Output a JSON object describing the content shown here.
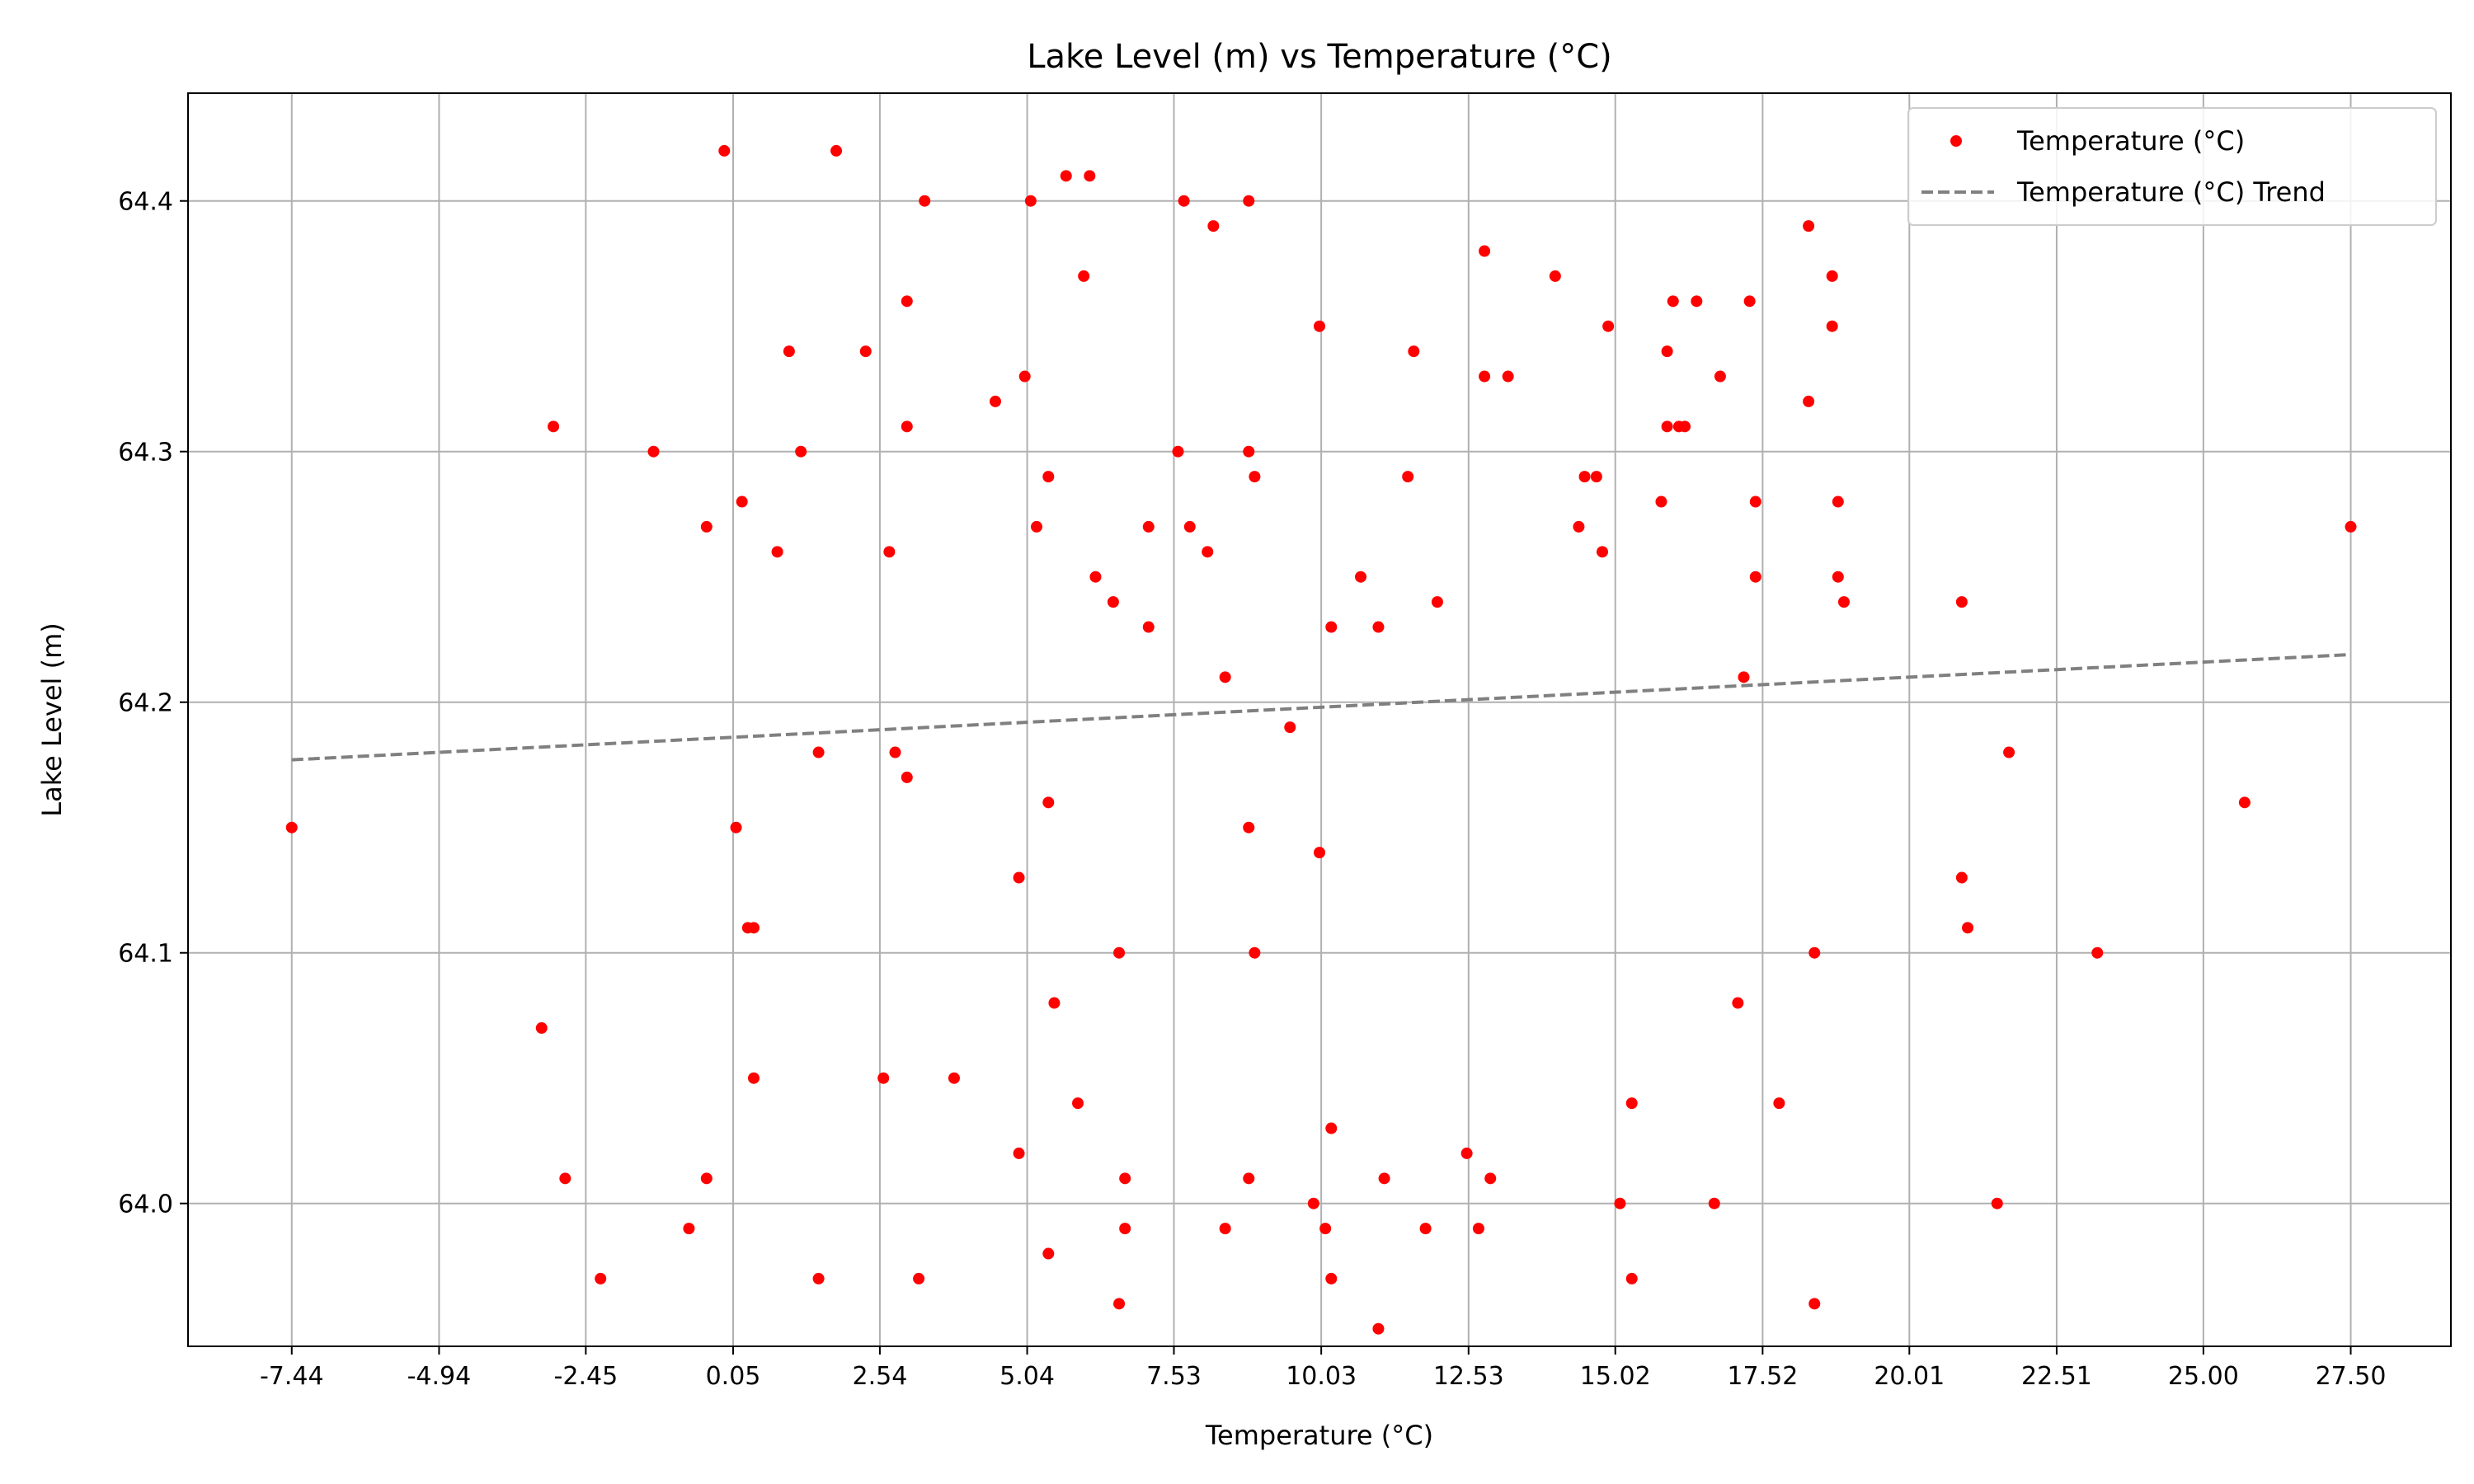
{
  "chart_data": {
    "type": "scatter",
    "title": "Lake Level (m) vs Temperature (°C)",
    "xlabel": "Temperature (°C)",
    "ylabel": "Lake Level (m)",
    "xlim": [
      -9.2,
      29.2
    ],
    "ylim": [
      63.943,
      64.443
    ],
    "xticks": [
      -7.44,
      -4.94,
      -2.45,
      0.05,
      2.54,
      5.04,
      7.53,
      10.03,
      12.53,
      15.02,
      17.52,
      20.01,
      22.51,
      25.0,
      27.5
    ],
    "xtick_labels": [
      "-7.44",
      "-4.94",
      "-2.45",
      "0.05",
      "2.54",
      "5.04",
      "7.53",
      "10.03",
      "12.53",
      "15.02",
      "17.52",
      "20.01",
      "22.51",
      "25.00",
      "27.50"
    ],
    "yticks": [
      64.0,
      64.1,
      64.2,
      64.3,
      64.4
    ],
    "ytick_labels": [
      "64.0",
      "64.1",
      "64.2",
      "64.3",
      "64.4"
    ],
    "grid": true,
    "legend_position": "top-right",
    "colors": {
      "points": "#ff0000",
      "trend": "#808080",
      "grid": "#b0b0b0"
    },
    "series": [
      {
        "name": "Temperature (°C)",
        "kind": "scatter",
        "points": [
          [
            -7.44,
            64.15
          ],
          [
            -3.0,
            64.31
          ],
          [
            -1.3,
            64.3
          ],
          [
            -0.1,
            64.42
          ],
          [
            1.8,
            64.42
          ],
          [
            -0.4,
            64.27
          ],
          [
            0.2,
            64.28
          ],
          [
            1.0,
            64.34
          ],
          [
            1.2,
            64.3
          ],
          [
            0.8,
            64.26
          ],
          [
            3.3,
            64.4
          ],
          [
            5.1,
            64.4
          ],
          [
            5.7,
            64.41
          ],
          [
            6.1,
            64.41
          ],
          [
            7.7,
            64.4
          ],
          [
            8.8,
            64.4
          ],
          [
            8.2,
            64.39
          ],
          [
            6.0,
            64.37
          ],
          [
            3.0,
            64.36
          ],
          [
            2.3,
            64.34
          ],
          [
            3.0,
            64.31
          ],
          [
            4.5,
            64.32
          ],
          [
            5.0,
            64.33
          ],
          [
            2.7,
            64.26
          ],
          [
            5.4,
            64.29
          ],
          [
            5.2,
            64.27
          ],
          [
            7.6,
            64.3
          ],
          [
            8.8,
            64.3
          ],
          [
            8.9,
            64.29
          ],
          [
            7.1,
            64.27
          ],
          [
            7.8,
            64.27
          ],
          [
            8.1,
            64.26
          ],
          [
            6.2,
            64.25
          ],
          [
            6.5,
            64.24
          ],
          [
            7.1,
            64.23
          ],
          [
            10.0,
            64.35
          ],
          [
            11.6,
            64.34
          ],
          [
            11.5,
            64.29
          ],
          [
            10.7,
            64.25
          ],
          [
            12.0,
            64.24
          ],
          [
            10.2,
            64.23
          ],
          [
            11.0,
            64.23
          ],
          [
            12.8,
            64.38
          ],
          [
            12.8,
            64.33
          ],
          [
            13.2,
            64.33
          ],
          [
            14.0,
            64.37
          ],
          [
            14.9,
            64.35
          ],
          [
            14.5,
            64.29
          ],
          [
            14.7,
            64.29
          ],
          [
            14.4,
            64.27
          ],
          [
            14.8,
            64.26
          ],
          [
            15.9,
            64.34
          ],
          [
            16.0,
            64.36
          ],
          [
            16.4,
            64.36
          ],
          [
            17.3,
            64.36
          ],
          [
            16.8,
            64.33
          ],
          [
            15.9,
            64.31
          ],
          [
            16.1,
            64.31
          ],
          [
            16.2,
            64.31
          ],
          [
            15.8,
            64.28
          ],
          [
            17.4,
            64.28
          ],
          [
            17.4,
            64.25
          ],
          [
            18.3,
            64.39
          ],
          [
            18.7,
            64.37
          ],
          [
            18.7,
            64.35
          ],
          [
            18.3,
            64.32
          ],
          [
            18.8,
            64.28
          ],
          [
            18.8,
            64.25
          ],
          [
            18.9,
            64.24
          ],
          [
            20.9,
            64.24
          ],
          [
            27.5,
            64.27
          ],
          [
            8.4,
            64.21
          ],
          [
            17.2,
            64.21
          ],
          [
            9.5,
            64.19
          ],
          [
            1.5,
            64.18
          ],
          [
            2.8,
            64.18
          ],
          [
            3.0,
            64.17
          ],
          [
            5.4,
            64.16
          ],
          [
            0.1,
            64.15
          ],
          [
            8.8,
            64.15
          ],
          [
            10.0,
            64.14
          ],
          [
            21.7,
            64.18
          ],
          [
            25.7,
            64.16
          ],
          [
            4.9,
            64.13
          ],
          [
            20.9,
            64.13
          ],
          [
            0.3,
            64.11
          ],
          [
            0.4,
            64.11
          ],
          [
            21.0,
            64.11
          ],
          [
            6.6,
            64.1
          ],
          [
            8.9,
            64.1
          ],
          [
            18.4,
            64.1
          ],
          [
            23.2,
            64.1
          ],
          [
            -3.2,
            64.07
          ],
          [
            5.5,
            64.08
          ],
          [
            17.1,
            64.08
          ],
          [
            0.4,
            64.05
          ],
          [
            2.6,
            64.05
          ],
          [
            3.8,
            64.05
          ],
          [
            5.9,
            64.04
          ],
          [
            15.3,
            64.04
          ],
          [
            17.8,
            64.04
          ],
          [
            10.2,
            64.03
          ],
          [
            -2.8,
            64.01
          ],
          [
            -0.4,
            64.01
          ],
          [
            4.9,
            64.02
          ],
          [
            6.7,
            64.01
          ],
          [
            8.8,
            64.01
          ],
          [
            11.1,
            64.01
          ],
          [
            12.5,
            64.02
          ],
          [
            12.9,
            64.01
          ],
          [
            9.9,
            64.0
          ],
          [
            15.1,
            64.0
          ],
          [
            16.7,
            64.0
          ],
          [
            21.5,
            64.0
          ],
          [
            -0.7,
            63.99
          ],
          [
            6.7,
            63.99
          ],
          [
            8.4,
            63.99
          ],
          [
            10.1,
            63.99
          ],
          [
            11.8,
            63.99
          ],
          [
            12.7,
            63.99
          ],
          [
            -2.2,
            63.97
          ],
          [
            1.5,
            63.97
          ],
          [
            3.2,
            63.97
          ],
          [
            10.2,
            63.97
          ],
          [
            15.3,
            63.97
          ],
          [
            5.4,
            63.98
          ],
          [
            6.6,
            63.96
          ],
          [
            18.4,
            63.96
          ],
          [
            11.0,
            63.95
          ]
        ]
      },
      {
        "name": "Temperature (°C) Trend",
        "kind": "line",
        "dashed": true,
        "points": [
          [
            -7.44,
            64.177
          ],
          [
            27.5,
            64.219
          ]
        ]
      }
    ]
  }
}
